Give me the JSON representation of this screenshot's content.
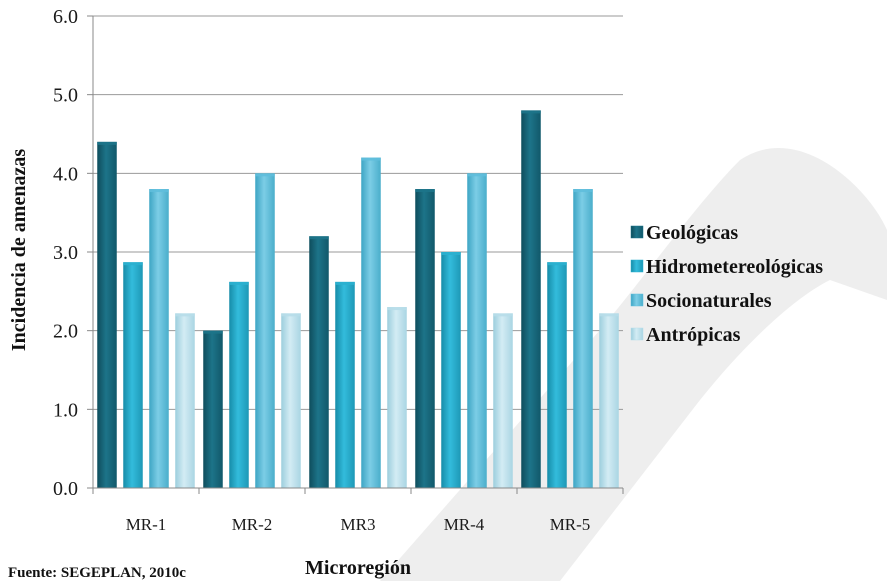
{
  "chart_data": {
    "type": "bar",
    "xlabel": "Microregión",
    "ylabel": "Incidencia de amenazas",
    "ylim": [
      0,
      6
    ],
    "yticks": [
      "0.0",
      "1.0",
      "2.0",
      "3.0",
      "4.0",
      "5.0",
      "6.0"
    ],
    "categories": [
      "MR-1",
      "MR-2",
      "MR3",
      "MR-4",
      "MR-5"
    ],
    "grid": true,
    "legend_position": "right",
    "series": [
      {
        "name": "Geológicas",
        "values": [
          4.4,
          2.0,
          3.2,
          3.8,
          4.8
        ],
        "color": "#1d7489"
      },
      {
        "name": "Hidrometereológicas",
        "values": [
          2.87,
          2.62,
          2.62,
          3.0,
          2.87
        ],
        "color": "#2bb0cf"
      },
      {
        "name": "Socionaturales",
        "values": [
          3.8,
          4.0,
          4.2,
          4.0,
          3.8
        ],
        "color": "#5fbedc"
      },
      {
        "name": "Antrópicas",
        "values": [
          2.22,
          2.22,
          2.3,
          2.22,
          2.22
        ],
        "color": "#b7dde9"
      }
    ]
  },
  "source_note": "Fuente: SEGEPLAN, 2010c"
}
